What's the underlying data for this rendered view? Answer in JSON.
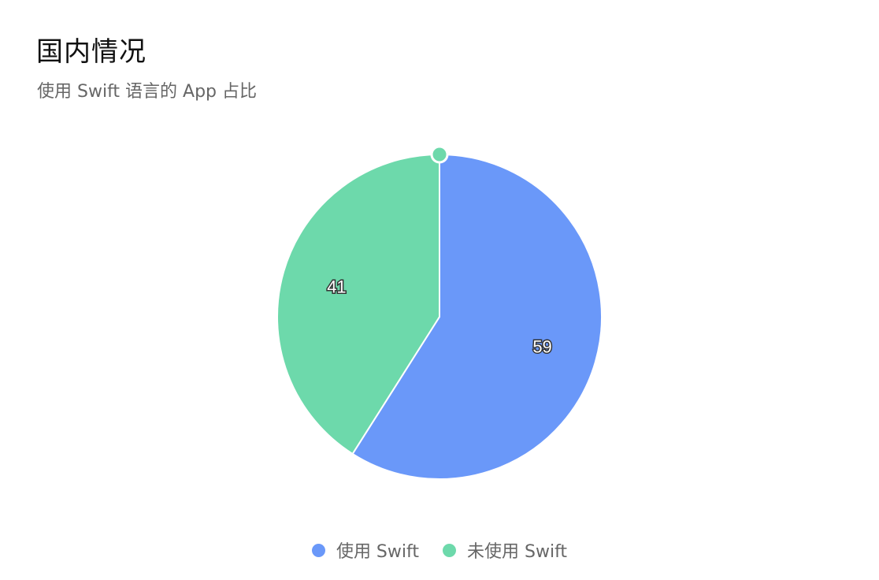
{
  "header": {
    "title": "国内情况",
    "subtitle": "使用 Swift 语言的 App 占比"
  },
  "chart_data": {
    "type": "pie",
    "title": "国内情况",
    "subtitle": "使用 Swift 语言的 App 占比",
    "categories": [
      "使用 Swift",
      "未使用 Swift"
    ],
    "values": [
      59,
      41
    ],
    "labels": [
      "59",
      "41"
    ],
    "colors": [
      "#6A98F9",
      "#6DD9AB"
    ],
    "legend_position": "bottom"
  }
}
